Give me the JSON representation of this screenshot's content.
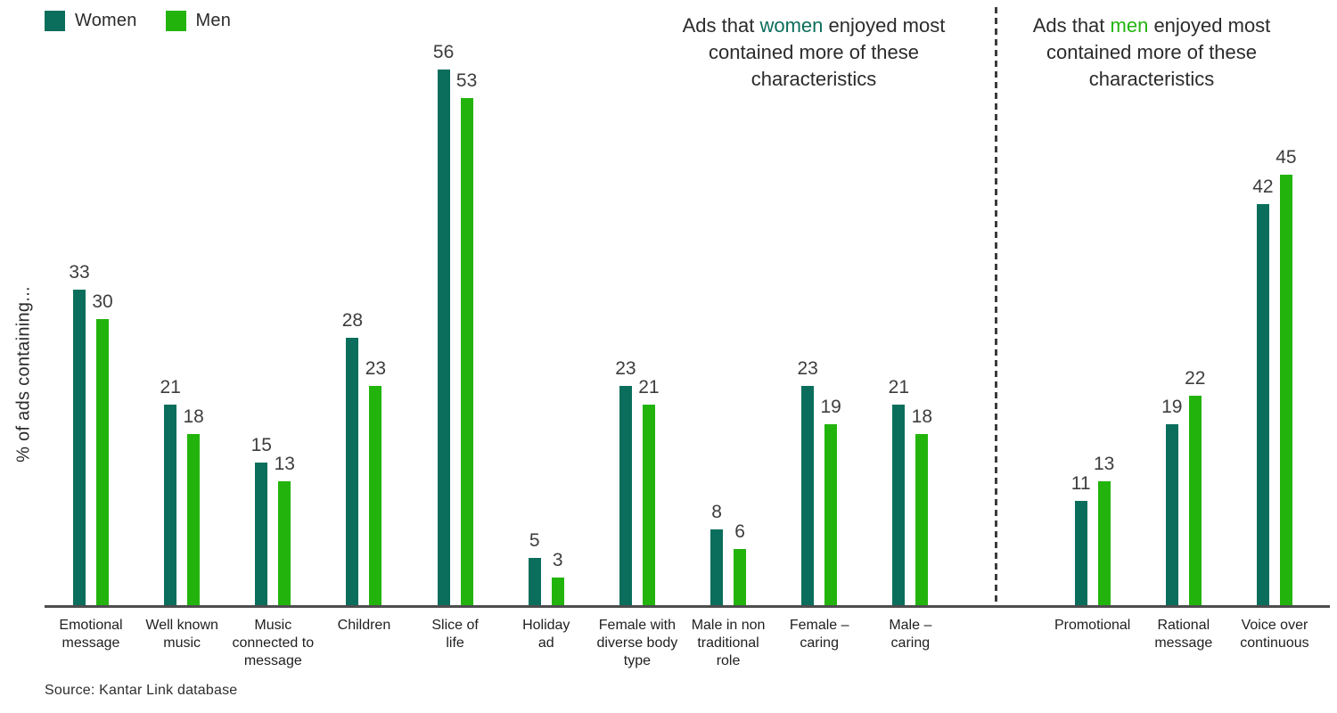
{
  "legend": {
    "women_label": "Women",
    "men_label": "Men"
  },
  "colors": {
    "women": "#0b6e5c",
    "men": "#22b40c",
    "value_text": "#3d3d3d",
    "axis_line": "#4d4d4d",
    "divider": "#3c3c3c"
  },
  "y_axis_label": "% of ads containing...",
  "annotations": {
    "left": {
      "pre": "Ads that ",
      "highlight": "women",
      "post": " enjoyed most contained more of these characteristics"
    },
    "right": {
      "pre": "Ads that ",
      "highlight": "men",
      "post": " enjoyed most contained more of these characteristics"
    }
  },
  "source": "Source: Kantar Link database",
  "chart_data": {
    "type": "bar",
    "title": "",
    "xlabel": "",
    "ylabel": "% of ads containing...",
    "ylim": [
      0,
      60
    ],
    "grid": false,
    "legend_position": "top-left",
    "series_names": [
      "Women",
      "Men"
    ],
    "panels": [
      {
        "name": "ads-women-enjoyed-most",
        "annotation": "Ads that women enjoyed most contained more of these characteristics",
        "categories": [
          "Emotional\nmessage",
          "Well known\nmusic",
          "Music\nconnected to\nmessage",
          "Children",
          "Slice of\nlife",
          "Holiday\nad",
          "Female with\ndiverse body\ntype",
          "Male in non\ntraditional\nrole",
          "Female –\ncaring",
          "Male –\ncaring"
        ],
        "series": [
          {
            "name": "Women",
            "values": [
              33,
              21,
              15,
              28,
              56,
              5,
              23,
              8,
              23,
              21
            ]
          },
          {
            "name": "Men",
            "values": [
              30,
              18,
              13,
              23,
              53,
              3,
              21,
              6,
              19,
              18
            ]
          }
        ]
      },
      {
        "name": "ads-men-enjoyed-most",
        "annotation": "Ads that men enjoyed most contained more of these characteristics",
        "categories": [
          "Promotional",
          "Rational\nmessage",
          "Voice over\ncontinuous"
        ],
        "series": [
          {
            "name": "Women",
            "values": [
              11,
              19,
              42
            ]
          },
          {
            "name": "Men",
            "values": [
              13,
              22,
              45
            ]
          }
        ]
      }
    ]
  }
}
